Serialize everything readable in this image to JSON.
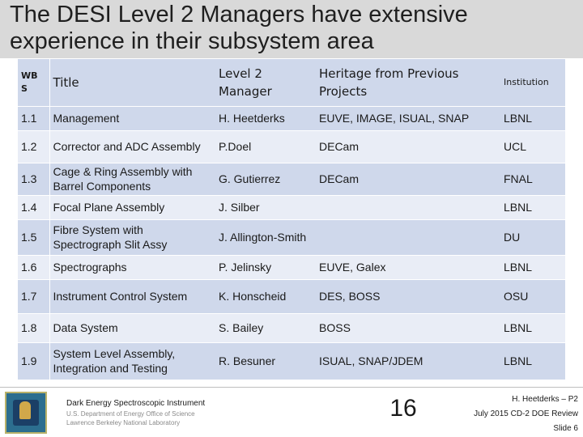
{
  "slide": {
    "title": "The DESI Level 2 Managers have extensive experience in their subsystem area"
  },
  "table": {
    "headers": [
      "WB S",
      "Title",
      "Level 2 Manager",
      "Heritage from Previous Projects",
      "Institution"
    ],
    "rows": [
      [
        "1.1",
        "Management",
        "H. Heetderks",
        "EUVE, IMAGE, ISUAL, SNAP",
        "LBNL"
      ],
      [
        "1.2",
        "Corrector and ADC Assembly",
        "P.Doel",
        "DECam",
        "UCL"
      ],
      [
        "1.3",
        "Cage & Ring Assembly with Barrel Components",
        "G. Gutierrez",
        "DECam",
        "FNAL"
      ],
      [
        "1.4",
        "Focal Plane Assembly",
        "J. Silber",
        "",
        "LBNL"
      ],
      [
        "1.5",
        "Fibre System with Spectrograph Slit Assy",
        "J. Allington-Smith",
        "",
        "DU"
      ],
      [
        "1.6",
        "Spectrographs",
        "P. Jelinsky",
        "EUVE, Galex",
        "LBNL"
      ],
      [
        "1.7",
        "Instrument Control System",
        "K. Honscheid",
        "DES, BOSS",
        "OSU"
      ],
      [
        "1.8",
        "Data System",
        "S. Bailey",
        "BOSS",
        "LBNL"
      ],
      [
        "1.9",
        "System Level Assembly, Integration and Testing",
        "R. Besuner",
        "ISUAL, SNAP/JDEM",
        "LBNL"
      ]
    ]
  },
  "footer": {
    "instrument": "Dark Energy Spectroscopic Instrument",
    "doe": "U.S. Department of Energy Office of Science",
    "lab": "Lawrence Berkeley National Laboratory",
    "page_number": "16",
    "author": "H. Heetderks – P2",
    "review": "July 2015 CD-2 DOE Review",
    "slide_label": "Slide 6"
  }
}
